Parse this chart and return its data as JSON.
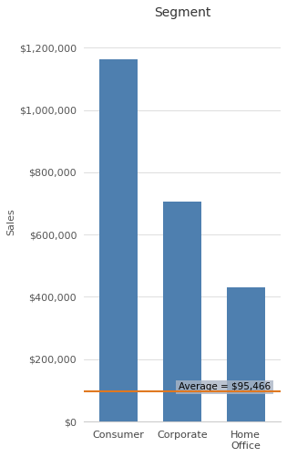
{
  "title": "Segment",
  "ylabel": "Sales",
  "categories": [
    "Consumer",
    "Corporate",
    "Home\nOffice"
  ],
  "values": [
    1161401,
    706146,
    430677
  ],
  "bar_color": "#4e7faf",
  "average_value": 95466,
  "average_label": "Average = $95,466",
  "ylim": [
    0,
    1280000
  ],
  "yticks": [
    0,
    200000,
    400000,
    600000,
    800000,
    1000000,
    1200000
  ],
  "grid_color": "#d8d8d8",
  "avg_line_color": "#e07820",
  "avg_label_bg": "#aab5c5",
  "bg_color": "#ffffff",
  "title_fontsize": 10,
  "title_fontweight": "normal",
  "axis_label_fontsize": 8,
  "tick_fontsize": 8,
  "bar_width": 0.6
}
